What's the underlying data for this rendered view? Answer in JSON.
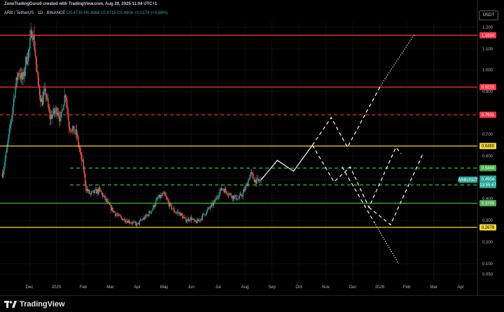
{
  "header": {
    "credit": "ZoneTradingGuru0 created with TradingView.com, Aug 20, 2025 11:04 UTC+1",
    "symbol": "ARB / TetherUS · 1D · BINANCE",
    "o": "O0.4730",
    "h": "H0.4966",
    "l": "L0.4715",
    "c": "C0.4904",
    "change": "+0.0174 (+3.68%)"
  },
  "currency": "USDT",
  "brand": "TradingView",
  "colors": {
    "background": "#000000",
    "up": "#26a69a",
    "down": "#ef5350",
    "red_line": "#f23645",
    "yellow_line": "#f5d63c",
    "green_line": "#4caf50",
    "projection": "#ffffff",
    "grid": "#1c1c1c"
  },
  "chart_data": {
    "type": "candlestick",
    "y_axis_ticks": [
      "1.200",
      "1.100",
      "1.000",
      "0.900",
      "0.800",
      "0.700",
      "0.600",
      "0.500",
      "0.400",
      "0.300",
      "0.200",
      "0.100",
      "0.050"
    ],
    "y_ticks": [
      1.2,
      1.1,
      1.0,
      0.9,
      0.8,
      0.7,
      0.6,
      0.5,
      0.4,
      0.3,
      0.2,
      0.1,
      0.05
    ],
    "x_axis_ticks": [
      {
        "label": "Dec",
        "t": 0.0
      },
      {
        "label": "2025",
        "t": 1.0
      },
      {
        "label": "Feb",
        "t": 2.0
      },
      {
        "label": "Mar",
        "t": 3.0
      },
      {
        "label": "Apr",
        "t": 4.0
      },
      {
        "label": "May",
        "t": 5.0
      },
      {
        "label": "Jun",
        "t": 6.0
      },
      {
        "label": "Jul",
        "t": 7.0
      },
      {
        "label": "Aug",
        "t": 8.0
      },
      {
        "label": "Sep",
        "t": 9.0
      },
      {
        "label": "Oct",
        "t": 10.0
      },
      {
        "label": "Nov",
        "t": 11.0
      },
      {
        "label": "Dec",
        "t": 12.0
      },
      {
        "label": "2026",
        "t": 13.0
      },
      {
        "label": "Feb",
        "t": 14.0
      },
      {
        "label": "Mar",
        "t": 15.0
      },
      {
        "label": "Apr",
        "t": 16.0
      }
    ],
    "price_path": [
      [
        -1.0,
        0.52
      ],
      [
        -0.85,
        0.62
      ],
      [
        -0.7,
        0.75
      ],
      [
        -0.55,
        0.9
      ],
      [
        -0.4,
        1.0
      ],
      [
        -0.25,
        0.95
      ],
      [
        -0.12,
        1.05
      ],
      [
        0.0,
        1.1
      ],
      [
        0.1,
        1.2
      ],
      [
        0.2,
        1.1
      ],
      [
        0.3,
        0.95
      ],
      [
        0.45,
        0.85
      ],
      [
        0.6,
        0.9
      ],
      [
        0.75,
        0.78
      ],
      [
        0.9,
        0.8
      ],
      [
        1.05,
        0.82
      ],
      [
        1.15,
        0.76
      ],
      [
        1.25,
        0.85
      ],
      [
        1.35,
        0.9
      ],
      [
        1.45,
        0.75
      ],
      [
        1.6,
        0.72
      ],
      [
        1.75,
        0.7
      ],
      [
        1.9,
        0.6
      ],
      [
        2.0,
        0.55
      ],
      [
        2.1,
        0.45
      ],
      [
        2.25,
        0.42
      ],
      [
        2.4,
        0.43
      ],
      [
        2.6,
        0.44
      ],
      [
        2.8,
        0.4
      ],
      [
        3.0,
        0.36
      ],
      [
        3.2,
        0.33
      ],
      [
        3.4,
        0.31
      ],
      [
        3.6,
        0.3
      ],
      [
        3.8,
        0.29
      ],
      [
        4.0,
        0.28
      ],
      [
        4.15,
        0.3
      ],
      [
        4.35,
        0.32
      ],
      [
        4.55,
        0.35
      ],
      [
        4.75,
        0.4
      ],
      [
        5.0,
        0.42
      ],
      [
        5.2,
        0.37
      ],
      [
        5.4,
        0.34
      ],
      [
        5.6,
        0.33
      ],
      [
        5.8,
        0.3
      ],
      [
        6.0,
        0.31
      ],
      [
        6.15,
        0.29
      ],
      [
        6.3,
        0.3
      ],
      [
        6.5,
        0.33
      ],
      [
        6.7,
        0.36
      ],
      [
        6.85,
        0.38
      ],
      [
        7.0,
        0.42
      ],
      [
        7.15,
        0.45
      ],
      [
        7.35,
        0.43
      ],
      [
        7.55,
        0.41
      ],
      [
        7.75,
        0.4
      ],
      [
        7.9,
        0.42
      ],
      [
        8.05,
        0.46
      ],
      [
        8.2,
        0.52
      ],
      [
        8.35,
        0.49
      ],
      [
        8.5,
        0.48
      ],
      [
        8.6,
        0.49
      ]
    ],
    "horizontal_levels": [
      {
        "label": "1.1634",
        "value": 1.1634,
        "color": "#f23645",
        "style": "solid"
      },
      {
        "label": "0.9210",
        "value": 0.921,
        "color": "#f23645",
        "style": "solid"
      },
      {
        "label": "0.7931",
        "value": 0.7931,
        "color": "#f23645",
        "style": "dashed"
      },
      {
        "label": "0.6460",
        "value": 0.646,
        "color": "#f5d63c",
        "style": "solid"
      },
      {
        "label": "0.5444",
        "value": 0.5444,
        "color": "#4caf50",
        "style": "dashed"
      },
      {
        "label": "0.4654",
        "value": 0.4654,
        "color": "#4caf50",
        "style": "dashed"
      },
      {
        "label": "0.3790",
        "value": 0.379,
        "color": "#4caf50",
        "style": "solid"
      },
      {
        "label": "0.2678",
        "value": 0.2678,
        "color": "#f5d63c",
        "style": "solid"
      }
    ],
    "current_price": {
      "symbol": "ARBUSDT",
      "value": 0.4904,
      "price_label": "0.4904",
      "countdown": "13:55:47"
    },
    "projections": [
      {
        "style": "solid",
        "points": [
          [
            8.6,
            0.49
          ],
          [
            9.2,
            0.58
          ],
          [
            9.8,
            0.53
          ],
          [
            10.5,
            0.65
          ]
        ]
      },
      {
        "style": "dashed",
        "points": [
          [
            10.5,
            0.65
          ],
          [
            11.2,
            0.78
          ],
          [
            11.8,
            0.64
          ],
          [
            13.0,
            0.92
          ]
        ]
      },
      {
        "style": "dotted",
        "points": [
          [
            13.0,
            0.92
          ],
          [
            13.2,
            0.96
          ],
          [
            14.3,
            1.17
          ]
        ]
      },
      {
        "style": "dashed",
        "points": [
          [
            10.5,
            0.65
          ],
          [
            11.3,
            0.48
          ],
          [
            11.9,
            0.55
          ],
          [
            12.6,
            0.36
          ],
          [
            13.6,
            0.64
          ],
          [
            13.8,
            0.61
          ]
        ]
      },
      {
        "style": "dashed",
        "points": [
          [
            12.6,
            0.36
          ],
          [
            13.4,
            0.28
          ],
          [
            14.6,
            0.61
          ]
        ]
      },
      {
        "style": "dashed",
        "points": [
          [
            11.6,
            0.55
          ],
          [
            12.8,
            0.29
          ]
        ]
      },
      {
        "style": "dotted",
        "points": [
          [
            12.8,
            0.29
          ],
          [
            13.7,
            0.1
          ]
        ]
      }
    ]
  }
}
